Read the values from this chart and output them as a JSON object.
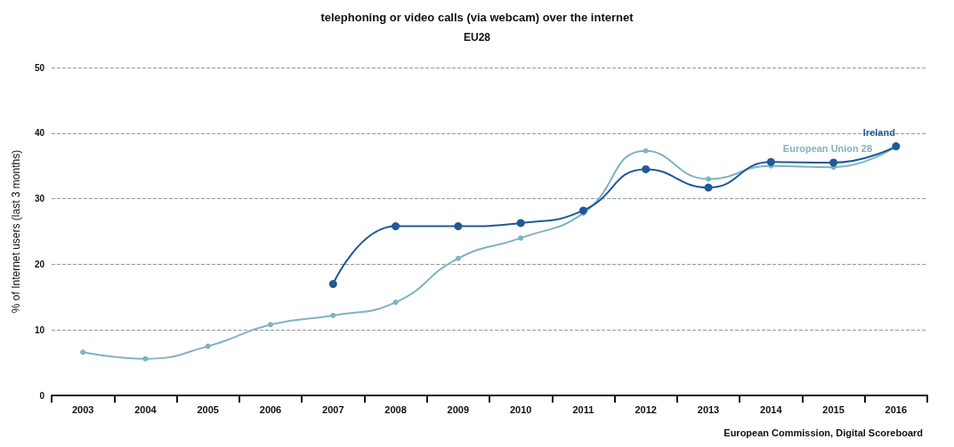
{
  "chart_data": {
    "type": "line",
    "title": "telephoning or video calls (via webcam) over the internet",
    "subtitle": "EU28",
    "ylabel": "% of Internet users (last 3 months)",
    "categories": [
      "2003",
      "2004",
      "2005",
      "2006",
      "2007",
      "2008",
      "2009",
      "2010",
      "2011",
      "2012",
      "2013",
      "2014",
      "2015",
      "2016"
    ],
    "series": [
      {
        "name": "Ireland",
        "color": "#1f5a96",
        "values": [
          null,
          null,
          null,
          null,
          17,
          25.8,
          25.8,
          26.3,
          28.2,
          34.5,
          31.7,
          35.6,
          35.5,
          38
        ]
      },
      {
        "name": "European Union 28",
        "color": "#7fb3c2",
        "values": [
          6.6,
          5.6,
          7.5,
          10.8,
          12.2,
          14.2,
          20.9,
          24,
          27.8,
          37.3,
          33,
          35,
          34.8,
          38
        ]
      }
    ],
    "ylim": [
      0,
      50
    ],
    "yticks": [
      0,
      10,
      20,
      30,
      40,
      50
    ],
    "grid": "y",
    "marker": "circle",
    "line_style": "solid",
    "annotations": [
      "European Commission, Digital Scoreboard"
    ]
  }
}
